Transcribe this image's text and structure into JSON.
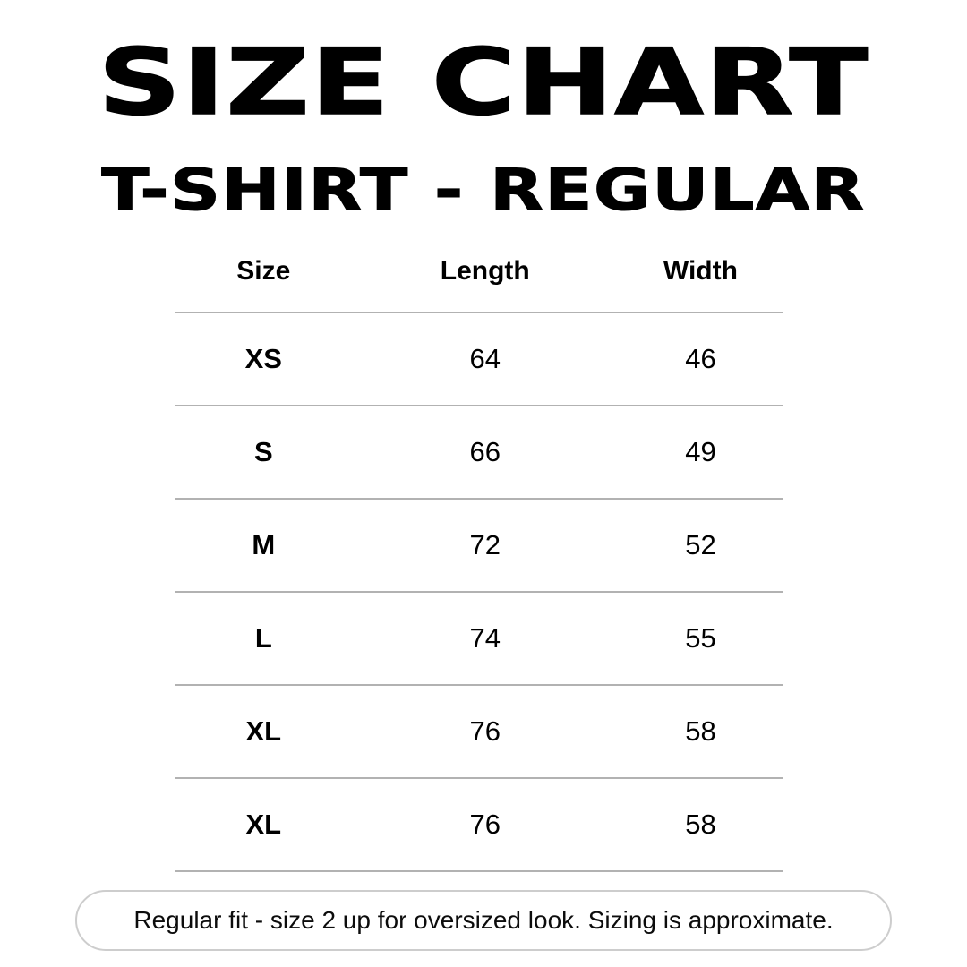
{
  "header": {
    "title": "SIZE CHART",
    "subtitle": "T-SHIRT - REGULAR"
  },
  "table": {
    "columns": [
      "Size",
      "Length",
      "Width"
    ],
    "rows": [
      {
        "size": "XS",
        "length": "64",
        "width": "46"
      },
      {
        "size": "S",
        "length": "66",
        "width": "49"
      },
      {
        "size": "M",
        "length": "72",
        "width": "52"
      },
      {
        "size": "L",
        "length": "74",
        "width": "55"
      },
      {
        "size": "XL",
        "length": "76",
        "width": "58"
      },
      {
        "size": "XL",
        "length": "76",
        "width": "58"
      }
    ]
  },
  "footer": {
    "note": "Regular fit - size 2 up for oversized look. Sizing is approximate."
  },
  "colors": {
    "text": "#000000",
    "divider": "#b2b2b2",
    "pill_border": "#cdcdcd",
    "background": "#ffffff"
  },
  "chart_data": {
    "type": "table",
    "title": "SIZE CHART",
    "subtitle": "T-SHIRT - REGULAR",
    "columns": [
      "Size",
      "Length",
      "Width"
    ],
    "rows": [
      [
        "XS",
        64,
        46
      ],
      [
        "S",
        66,
        49
      ],
      [
        "M",
        72,
        52
      ],
      [
        "L",
        74,
        55
      ],
      [
        "XL",
        76,
        58
      ],
      [
        "XL",
        76,
        58
      ]
    ],
    "note": "Regular fit - size 2 up for oversized look. Sizing is approximate."
  }
}
